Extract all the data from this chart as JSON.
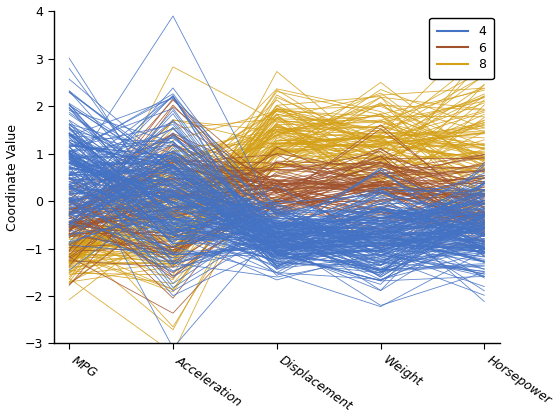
{
  "axes": [
    "MPG",
    "Acceleration",
    "Displacement",
    "Weight",
    "Horsepower"
  ],
  "cylinder_colors": {
    "4": "#4472c4",
    "6": "#a0522d",
    "8": "#d4a017"
  },
  "legend_labels": [
    "4",
    "6",
    "8"
  ],
  "ylabel": "Coordinate Value",
  "ylim": [
    -3,
    4
  ],
  "yticks": [
    -3,
    -2,
    -1,
    0,
    1,
    2,
    3,
    4
  ],
  "linewidth": 0.6,
  "alpha": 0.85,
  "seed": 42,
  "background": "#ffffff",
  "n4": 204,
  "n6": 84,
  "n8": 103
}
